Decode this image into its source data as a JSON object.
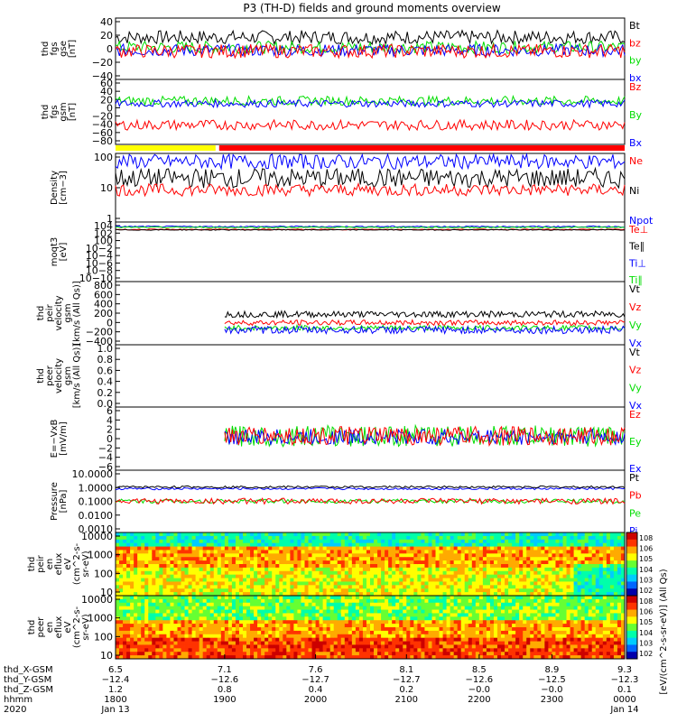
{
  "title": "P3 (TH-D) fields and ground moments overview",
  "colors": {
    "black": "#000000",
    "red": "#ff0000",
    "green": "#00dd00",
    "blue": "#0000ff",
    "yellow": "#ffff00"
  },
  "chart_data": [
    {
      "type": "line",
      "id": "fgs_gse",
      "ylabel_lines": [
        "thd",
        "fgs",
        "gse",
        "[nT]"
      ],
      "yticks": [
        "40",
        "20",
        "0",
        "−20",
        "−40"
      ],
      "ylim": [
        -40,
        40
      ],
      "legend": [
        {
          "name": "Bt",
          "color": "#000000"
        },
        {
          "name": "bz",
          "color": "#ff0000"
        },
        {
          "name": "by",
          "color": "#00dd00"
        },
        {
          "name": "bx",
          "color": "#0000ff"
        }
      ],
      "series": [
        {
          "name": "Bt",
          "color": "#000000",
          "level": 15,
          "amp": 9
        },
        {
          "name": "by",
          "color": "#00dd00",
          "level": 2,
          "amp": 8
        },
        {
          "name": "bx",
          "color": "#0000ff",
          "level": -2,
          "amp": 8
        },
        {
          "name": "bz",
          "color": "#ff0000",
          "level": -3,
          "amp": 9
        }
      ]
    },
    {
      "type": "line",
      "id": "fgs_gsm",
      "ylabel_lines": [
        "thd",
        "fgs",
        "gsm",
        "[nT]"
      ],
      "yticks": [
        "60",
        "40",
        "20",
        "0",
        "−20",
        "−40",
        "−60",
        "−80"
      ],
      "ylim": [
        -80,
        60
      ],
      "legend": [
        {
          "name": "Bz",
          "color": "#ff0000"
        },
        {
          "name": "By",
          "color": "#00dd00"
        },
        {
          "name": "Bx",
          "color": "#0000ff"
        }
      ],
      "series": [
        {
          "name": "By",
          "color": "#00dd00",
          "level": 14,
          "amp": 10
        },
        {
          "name": "Bx",
          "color": "#0000ff",
          "level": 8,
          "amp": 8
        },
        {
          "name": "Bz",
          "color": "#ff0000",
          "level": -38,
          "amp": 11
        }
      ]
    },
    {
      "type": "line",
      "id": "density",
      "ylabel_lines": [
        "Density",
        "[cm−3]"
      ],
      "yticks": [
        "100",
        "10",
        "1"
      ],
      "ylim": [
        0.5,
        300
      ],
      "log": true,
      "legend": [
        {
          "name": "Ne",
          "color": "#ff0000"
        },
        {
          "name": "Ni",
          "color": "#000000"
        },
        {
          "name": "Npot",
          "color": "#0000ff"
        }
      ],
      "series": [
        {
          "name": "Npot",
          "color": "#0000ff",
          "level": 140,
          "amp": 0.6
        },
        {
          "name": "Ni",
          "color": "#000000",
          "level": 30,
          "amp": 0.8
        },
        {
          "name": "Ne",
          "color": "#ff0000",
          "level": 10,
          "amp": 0.5
        }
      ]
    },
    {
      "type": "line",
      "id": "temperature",
      "ylabel_lines": [
        "moqt3",
        "[eV]"
      ],
      "yticks": [
        "104",
        "102",
        "100",
        "10−2",
        "10−4",
        "10−6",
        "10−8",
        "10−10"
      ],
      "ylim": [
        -10,
        4.4
      ],
      "log_exponent": true,
      "legend": [
        {
          "name": "Te⊥",
          "color": "#ff0000"
        },
        {
          "name": "Te∥",
          "color": "#000000"
        },
        {
          "name": "Ti⊥",
          "color": "#0000ff"
        },
        {
          "name": "Ti∥",
          "color": "#00dd00"
        }
      ],
      "series": [
        {
          "name": "Ti⊥",
          "color": "#0000ff",
          "level": 3.3,
          "amp": 0.15
        },
        {
          "name": "Ti∥",
          "color": "#00dd00",
          "level": 3.1,
          "amp": 0.15
        },
        {
          "name": "Te⊥",
          "color": "#ff0000",
          "level": 2.6,
          "amp": 0.1
        },
        {
          "name": "Te∥",
          "color": "#000000",
          "level": 2.5,
          "amp": 0.1
        }
      ]
    },
    {
      "type": "line",
      "id": "peir_velocity",
      "ylabel_lines": [
        "thd",
        "peir",
        "velocity",
        "gsm",
        "[km/s (All Qs)]"
      ],
      "yticks": [
        "800",
        "600",
        "400",
        "200",
        "0",
        "−200",
        "−400"
      ],
      "ylim": [
        -400,
        800
      ],
      "start_x": 7.1,
      "legend": [
        {
          "name": "Vt",
          "color": "#000000"
        },
        {
          "name": "Vz",
          "color": "#ff0000"
        },
        {
          "name": "Vy",
          "color": "#00dd00"
        },
        {
          "name": "Vx",
          "color": "#0000ff"
        }
      ],
      "series": [
        {
          "name": "Vt",
          "color": "#000000",
          "level": 180,
          "amp": 60
        },
        {
          "name": "Vz",
          "color": "#ff0000",
          "level": 20,
          "amp": 50
        },
        {
          "name": "Vy",
          "color": "#00dd00",
          "level": -80,
          "amp": 50
        },
        {
          "name": "Vx",
          "color": "#0000ff",
          "level": -120,
          "amp": 70
        }
      ]
    },
    {
      "type": "line",
      "id": "peer_velocity",
      "ylabel_lines": [
        "thd",
        "peer",
        "velocity",
        "gsm",
        "[km/s (All Qs)]"
      ],
      "yticks": [
        "1.0",
        "0.8",
        "0.6",
        "0.4",
        "0.2",
        "0.0"
      ],
      "ylim": [
        0,
        1
      ],
      "legend": [
        {
          "name": "Vt",
          "color": "#000000"
        },
        {
          "name": "Vz",
          "color": "#ff0000"
        },
        {
          "name": "Vy",
          "color": "#00dd00"
        },
        {
          "name": "Vx",
          "color": "#0000ff"
        }
      ],
      "series": []
    },
    {
      "type": "line",
      "id": "efield",
      "ylabel_lines": [
        "E=−VxB",
        "[mV/m]"
      ],
      "yticks": [
        "6",
        "4",
        "2",
        "0",
        "−2",
        "−4",
        "−6"
      ],
      "ylim": [
        -6,
        6
      ],
      "start_x": 7.1,
      "legend": [
        {
          "name": "Ez",
          "color": "#ff0000"
        },
        {
          "name": "Ey",
          "color": "#00dd00"
        },
        {
          "name": "Ex",
          "color": "#0000ff"
        }
      ],
      "series": [
        {
          "name": "Ey",
          "color": "#00dd00",
          "level": 0.5,
          "amp": 2
        },
        {
          "name": "Ex",
          "color": "#0000ff",
          "level": 0.3,
          "amp": 1.5
        },
        {
          "name": "Ez",
          "color": "#ff0000",
          "level": 0.5,
          "amp": 1.8
        }
      ]
    },
    {
      "type": "line",
      "id": "pressure",
      "ylabel_lines": [
        "Pressure",
        "[nPa]"
      ],
      "yticks": [
        "10.0000",
        "1.0000",
        "0.1000",
        "0.0100",
        "0.0010"
      ],
      "ylim": [
        0.0005,
        12
      ],
      "log": true,
      "legend": [
        {
          "name": "Pt",
          "color": "#000000"
        },
        {
          "name": "Pb",
          "color": "#ff0000"
        },
        {
          "name": "Pe",
          "color": "#00dd00"
        },
        {
          "name": "Pi",
          "color": "#0000ff"
        }
      ],
      "series": [
        {
          "name": "Pi",
          "color": "#0000ff",
          "level": 0.6,
          "amp": 0.15
        },
        {
          "name": "Pt",
          "color": "#000000",
          "level": 0.8,
          "amp": 0.15
        },
        {
          "name": "Pe",
          "color": "#00dd00",
          "level": 0.08,
          "amp": 0.3
        },
        {
          "name": "Pb",
          "color": "#ff0000",
          "level": 0.08,
          "amp": 0.4
        }
      ]
    },
    {
      "type": "heatmap",
      "id": "peir_spec",
      "ylabel_lines": [
        "thd",
        "peir",
        "en",
        "eflux",
        "eV",
        "(cm^2-s-",
        "sr-eV)"
      ],
      "yticks": [
        "10000",
        "1000",
        "100",
        "10"
      ],
      "colorbar_ticks": [
        "108",
        "106",
        "105",
        "104",
        "103",
        "102"
      ]
    },
    {
      "type": "heatmap",
      "id": "peer_spec",
      "ylabel_lines": [
        "thd",
        "peer",
        "en",
        "eflux",
        "eV",
        "(cm^2-s-",
        "sr-eV)"
      ],
      "yticks": [
        "10000",
        "1000",
        "100",
        "10"
      ],
      "colorbar_ticks": [
        "108",
        "106",
        "105",
        "104",
        "103",
        "102"
      ]
    }
  ],
  "colorbar_label": "[eV/(cm^2-s-sr-eV)] (All Qs)",
  "xaxis": {
    "row_labels": [
      "thd_X-GSM",
      "thd_Y-GSM",
      "thd_Z-GSM",
      "hhmm",
      "2020"
    ],
    "ticks": [
      {
        "x": 6.5,
        "X": "6.5",
        "Y": "−12.4",
        "Z": "1.2",
        "t": "1800",
        "d": "Jan 13"
      },
      {
        "x": 7.1,
        "X": "7.1",
        "Y": "−12.6",
        "Z": "0.8",
        "t": "1900",
        "d": ""
      },
      {
        "x": 7.6,
        "X": "7.6",
        "Y": "−12.7",
        "Z": "0.4",
        "t": "2000",
        "d": ""
      },
      {
        "x": 8.1,
        "X": "8.1",
        "Y": "−12.7",
        "Z": "0.2",
        "t": "2100",
        "d": ""
      },
      {
        "x": 8.5,
        "X": "8.5",
        "Y": "−12.6",
        "Z": "−0.0",
        "t": "2200",
        "d": ""
      },
      {
        "x": 8.9,
        "X": "8.9",
        "Y": "−12.5",
        "Z": "−0.0",
        "t": "2300",
        "d": ""
      },
      {
        "x": 9.3,
        "X": "9.3",
        "Y": "−12.3",
        "Z": "0.1",
        "t": "0000",
        "d": "Jan 14"
      }
    ]
  },
  "mode_bar": {
    "yellow_until_x": 7.05
  }
}
